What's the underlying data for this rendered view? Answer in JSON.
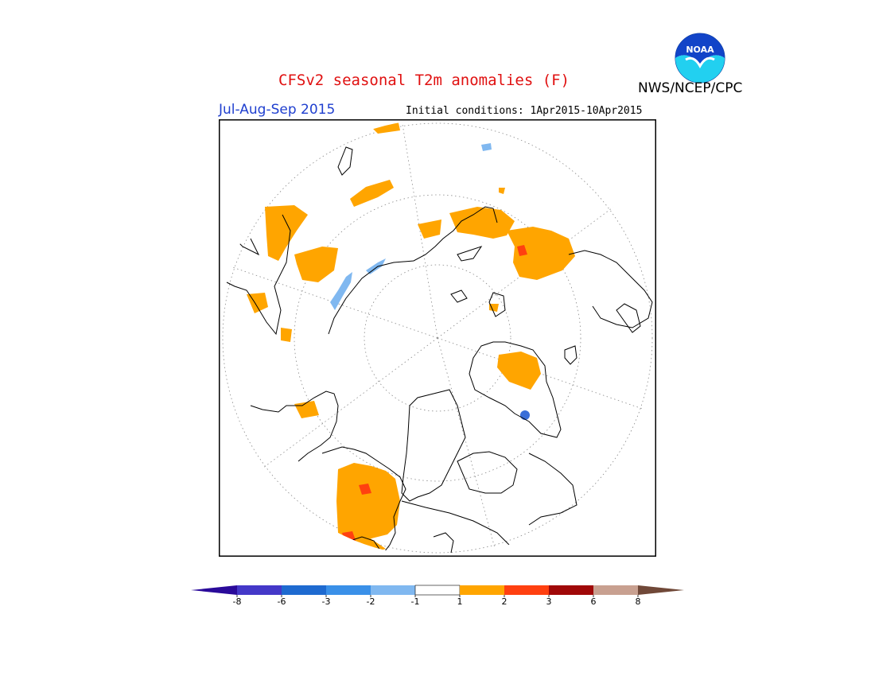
{
  "header": {
    "title": "CFSv2 seasonal T2m anomalies (F)",
    "agency": "NWS/NCEP/CPC",
    "period": "Jul-Aug-Sep 2015",
    "initial_conditions": "Initial conditions: 1Apr2015-10Apr2015",
    "logo_text": "NOAA"
  },
  "colorbar": {
    "labels": [
      "-8",
      "-6",
      "-3",
      "-2",
      "-1",
      "1",
      "2",
      "3",
      "6",
      "8"
    ],
    "colors": [
      "#2a0a9a",
      "#4438c8",
      "#1e6ad0",
      "#3a90e8",
      "#80b8f0",
      "#ffffff",
      "#ffa500",
      "#ff4010",
      "#a00808",
      "#c8a090",
      "#704838"
    ]
  },
  "map": {
    "projection": "north-polar-stereographic",
    "colors": {
      "warm1": "#ffa500",
      "warm2": "#ff4010",
      "cool1": "#80b8f0",
      "cool2": "#3a90e8",
      "cool3": "#1e6ad0",
      "coast": "#000000",
      "grid": "#888888"
    }
  }
}
